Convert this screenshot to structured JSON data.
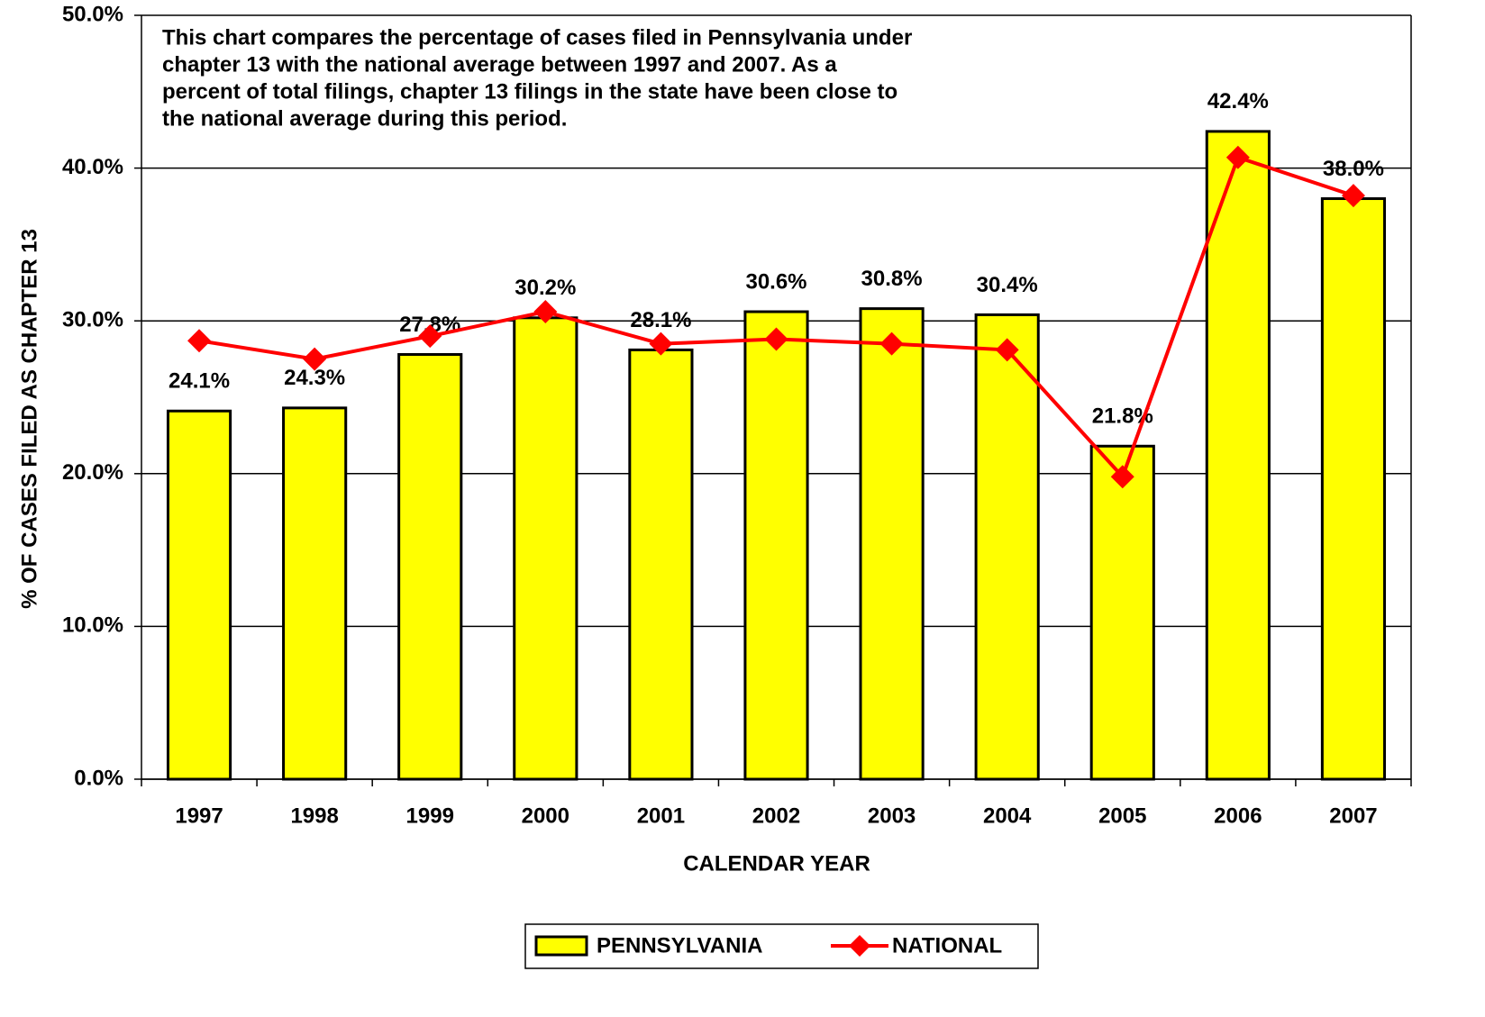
{
  "chart_data": {
    "type": "bar_line",
    "annotation": [
      "This chart compares the percentage of cases filed in Pennsylvania under",
      "chapter 13 with the national average between 1997 and 2007.  As a",
      "percent of total filings, chapter 13 filings in the state have been close to",
      "the national average during this period."
    ],
    "x_label": "CALENDAR YEAR",
    "y_label": "% OF CASES FILED AS CHAPTER 13",
    "categories": [
      "1997",
      "1998",
      "1999",
      "2000",
      "2001",
      "2002",
      "2003",
      "2004",
      "2005",
      "2006",
      "2007"
    ],
    "series": [
      {
        "name": "PENNSYLVANIA",
        "type": "bar",
        "color": "#ffff00",
        "values": [
          24.1,
          24.3,
          27.8,
          30.2,
          28.1,
          30.6,
          30.8,
          30.4,
          21.8,
          42.4,
          38.0
        ],
        "value_labels": [
          "24.1%",
          "24.3%",
          "27.8%",
          "30.2%",
          "28.1%",
          "30.6%",
          "30.8%",
          "30.4%",
          "21.8%",
          "42.4%",
          "38.0%"
        ]
      },
      {
        "name": "NATIONAL",
        "type": "line",
        "color": "#ff0000",
        "values": [
          28.7,
          27.5,
          29.0,
          30.6,
          28.5,
          28.8,
          28.5,
          28.1,
          19.8,
          40.7,
          38.2
        ]
      }
    ],
    "ylim": [
      0,
      50
    ],
    "yticks": [
      {
        "value": 0,
        "label": "0.0%"
      },
      {
        "value": 10,
        "label": "10.0%"
      },
      {
        "value": 20,
        "label": "20.0%"
      },
      {
        "value": 30,
        "label": "30.0%"
      },
      {
        "value": 40,
        "label": "40.0%"
      },
      {
        "value": 50,
        "label": "50.0%"
      }
    ],
    "grid": true
  }
}
